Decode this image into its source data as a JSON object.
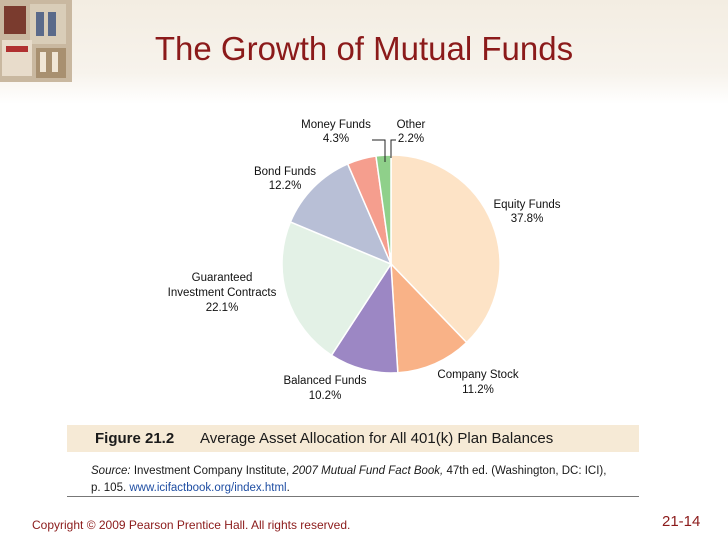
{
  "slide": {
    "title": "The Growth of Mutual Funds",
    "copyright": "Copyright © 2009 Pearson Prentice Hall. All rights reserved.",
    "page_number": "21-14"
  },
  "figure": {
    "number": "Figure 21.2",
    "caption": "Average Asset Allocation for All 401(k) Plan Balances",
    "source_label": "Source:",
    "source_org": "Investment Company Institute,",
    "source_book": "2007 Mutual Fund Fact Book,",
    "source_rest": "47th ed. (Washington, DC: ICI),",
    "source_page": "p. 105.",
    "source_url": "www.icifactbook.org/index.html",
    "source_end": "."
  },
  "colors": {
    "title": "#8b1a1a",
    "equity": "#fde3c6",
    "company_stock": "#f9b287",
    "balanced": "#9c87c4",
    "guaranteed": "#e3f1e6",
    "bond": "#b8bfd6",
    "money": "#f59e8e",
    "other": "#8fd08a"
  },
  "chart_data": {
    "type": "pie",
    "title": "",
    "slices": [
      {
        "label": "Equity Funds",
        "value": 37.8,
        "display": "37.8%",
        "color": "#fde3c6"
      },
      {
        "label": "Company Stock",
        "value": 11.2,
        "display": "11.2%",
        "color": "#f9b287"
      },
      {
        "label": "Balanced Funds",
        "value": 10.2,
        "display": "10.2%",
        "color": "#9c87c4"
      },
      {
        "label": "Guaranteed Investment Contracts",
        "value": 22.1,
        "display": "22.1%",
        "color": "#e3f1e6"
      },
      {
        "label": "Bond Funds",
        "value": 12.2,
        "display": "12.2%",
        "color": "#b8bfd6"
      },
      {
        "label": "Money Funds",
        "value": 4.3,
        "display": "4.3%",
        "color": "#f59e8e"
      },
      {
        "label": "Other",
        "value": 2.2,
        "display": "2.2%",
        "color": "#8fd08a"
      }
    ]
  }
}
